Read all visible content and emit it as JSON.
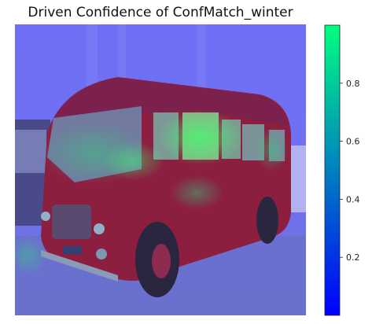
{
  "chart_data": {
    "type": "heatmap",
    "title": "Driven Confidence of ConfMatch_winter",
    "xlabel": "",
    "ylabel": "",
    "axes_visible": false,
    "colormap": "winter",
    "colormap_colors": [
      "#0000ff",
      "#00ff80"
    ],
    "overlay_base_colors": {
      "background_tint": "#6f6ff5",
      "bus_body": "#8c1e40",
      "ground": "#5a7a4a"
    },
    "colorbar": {
      "range": [
        0.0,
        1.0
      ],
      "ticks": [
        0.2,
        0.4,
        0.6,
        0.8
      ],
      "tick_labels": [
        "0.2",
        "0.4",
        "0.6",
        "0.8"
      ],
      "orientation": "vertical",
      "placement": "right"
    },
    "annotations": [
      "vintage red single-deck bus image overlaid with confidence heatmap; highest confidence (~0.7–0.9) around bus windows"
    ]
  }
}
